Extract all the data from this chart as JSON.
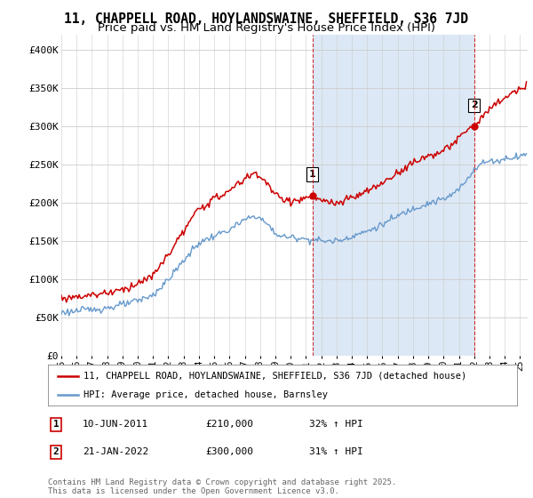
{
  "title": "11, CHAPPELL ROAD, HOYLANDSWAINE, SHEFFIELD, S36 7JD",
  "subtitle": "Price paid vs. HM Land Registry's House Price Index (HPI)",
  "title_fontsize": 10.5,
  "subtitle_fontsize": 9.5,
  "background_color": "#ffffff",
  "plot_bg_color": "#ffffff",
  "shaded_bg_color": "#dce8f5",
  "ylabel_ticks": [
    "£0",
    "£50K",
    "£100K",
    "£150K",
    "£200K",
    "£250K",
    "£300K",
    "£350K",
    "£400K"
  ],
  "ytick_values": [
    0,
    50000,
    100000,
    150000,
    200000,
    250000,
    300000,
    350000,
    400000
  ],
  "ylim": [
    0,
    420000
  ],
  "red_color": "#cc0000",
  "blue_color": "#6699cc",
  "marker1_year": 2011,
  "marker1_month": 6,
  "marker1_price": 210000,
  "marker2_year": 2022,
  "marker2_month": 1,
  "marker2_price": 300000,
  "legend_line1": "11, CHAPPELL ROAD, HOYLANDSWAINE, SHEFFIELD, S36 7JD (detached house)",
  "legend_line2": "HPI: Average price, detached house, Barnsley",
  "footer": "Contains HM Land Registry data © Crown copyright and database right 2025.\nThis data is licensed under the Open Government Licence v3.0."
}
